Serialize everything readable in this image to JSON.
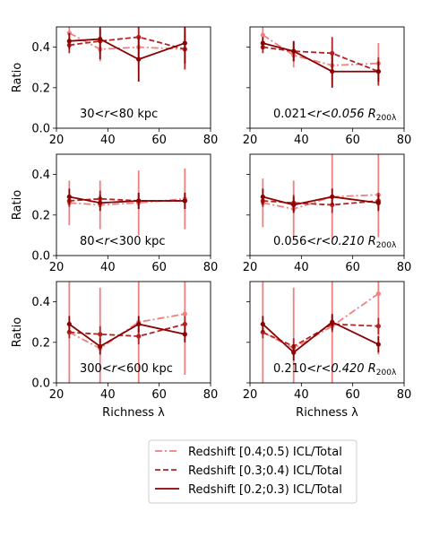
{
  "chart_data": [
    {
      "type": "line",
      "xlabel": "",
      "ylabel": "Ratio",
      "xlim": [
        20,
        80
      ],
      "ylim": [
        0,
        0.5
      ],
      "xticks": [
        "20",
        "40",
        "60",
        "80"
      ],
      "yticks": [
        "0.0",
        "0.2",
        "0.4"
      ],
      "annotation": "30<r<80 kpc",
      "series": [
        {
          "name": "Redshift [0.4;0.5) ICL/Total",
          "color": "#f08080",
          "style": "dashdot",
          "x": [
            25,
            37,
            52,
            70
          ],
          "y": [
            0.47,
            0.39,
            0.4,
            0.39
          ],
          "err": [
            0.04,
            0.06,
            0.11,
            0.07
          ]
        },
        {
          "name": "Redshift [0.3;0.4) ICL/Total",
          "color": "#b22222",
          "style": "dashed",
          "x": [
            25,
            37,
            52,
            70
          ],
          "y": [
            0.41,
            0.43,
            0.45,
            0.39
          ],
          "err": [
            0.04,
            0.06,
            0.12,
            0.1
          ]
        },
        {
          "name": "Redshift [0.2;0.3) ICL/Total",
          "color": "#8b0000",
          "style": "solid",
          "x": [
            25,
            37,
            52,
            70
          ],
          "y": [
            0.43,
            0.44,
            0.34,
            0.42
          ],
          "err": [
            0.04,
            0.1,
            0.11,
            0.1
          ]
        }
      ]
    },
    {
      "type": "line",
      "xlabel": "",
      "ylabel": "",
      "xlim": [
        20,
        80
      ],
      "ylim": [
        0,
        0.5
      ],
      "xticks": [
        "20",
        "40",
        "60",
        "80"
      ],
      "yticks": [],
      "annotation": "0.021<r<0.056 R",
      "annotation_sub": "200λ",
      "series": [
        {
          "name": "Redshift [0.4;0.5) ICL/Total",
          "color": "#f08080",
          "style": "dashdot",
          "x": [
            25,
            37,
            52,
            70
          ],
          "y": [
            0.46,
            0.36,
            0.31,
            0.32
          ],
          "err": [
            0.05,
            0.06,
            0.08,
            0.1
          ]
        },
        {
          "name": "Redshift [0.3;0.4) ICL/Total",
          "color": "#b22222",
          "style": "dashed",
          "x": [
            25,
            37,
            52,
            70
          ],
          "y": [
            0.4,
            0.38,
            0.37,
            0.28
          ],
          "err": [
            0.03,
            0.05,
            0.08,
            0.07
          ]
        },
        {
          "name": "Redshift [0.2;0.3) ICL/Total",
          "color": "#8b0000",
          "style": "solid",
          "x": [
            25,
            37,
            52,
            70
          ],
          "y": [
            0.42,
            0.38,
            0.28,
            0.28
          ],
          "err": [
            0.03,
            0.05,
            0.08,
            0.05
          ]
        }
      ]
    },
    {
      "type": "line",
      "xlabel": "",
      "ylabel": "Ratio",
      "xlim": [
        20,
        80
      ],
      "ylim": [
        0,
        0.5
      ],
      "xticks": [
        "20",
        "40",
        "60",
        "80"
      ],
      "yticks": [
        "0.0",
        "0.2",
        "0.4"
      ],
      "annotation": "80<r<300 kpc",
      "series": [
        {
          "name": "Redshift [0.4;0.5) ICL/Total",
          "color": "#f08080",
          "style": "dashdot",
          "x": [
            25,
            37,
            52,
            70
          ],
          "y": [
            0.26,
            0.25,
            0.26,
            0.28
          ],
          "err": [
            0.11,
            0.12,
            0.16,
            0.15
          ]
        },
        {
          "name": "Redshift [0.3;0.4) ICL/Total",
          "color": "#b22222",
          "style": "dashed",
          "x": [
            25,
            37,
            52,
            70
          ],
          "y": [
            0.27,
            0.28,
            0.27,
            0.27
          ],
          "err": [
            0.03,
            0.04,
            0.04,
            0.04
          ]
        },
        {
          "name": "Redshift [0.2;0.3) ICL/Total",
          "color": "#8b0000",
          "style": "solid",
          "x": [
            25,
            37,
            52,
            70
          ],
          "y": [
            0.29,
            0.26,
            0.27,
            0.27
          ],
          "err": [
            0.04,
            0.04,
            0.04,
            0.04
          ]
        }
      ]
    },
    {
      "type": "line",
      "xlabel": "",
      "ylabel": "",
      "xlim": [
        20,
        80
      ],
      "ylim": [
        0,
        0.5
      ],
      "xticks": [
        "20",
        "40",
        "60",
        "80"
      ],
      "yticks": [],
      "annotation": "0.056<r<0.210 R",
      "annotation_sub": "200λ",
      "series": [
        {
          "name": "Redshift [0.4;0.5) ICL/Total",
          "color": "#f08080",
          "style": "dashdot",
          "x": [
            25,
            37,
            52,
            70
          ],
          "y": [
            0.26,
            0.23,
            0.29,
            0.3
          ],
          "err": [
            0.12,
            0.14,
            0.21,
            0.21
          ]
        },
        {
          "name": "Redshift [0.3;0.4) ICL/Total",
          "color": "#b22222",
          "style": "dashed",
          "x": [
            25,
            37,
            52,
            70
          ],
          "y": [
            0.27,
            0.26,
            0.25,
            0.27
          ],
          "err": [
            0.03,
            0.04,
            0.04,
            0.04
          ]
        },
        {
          "name": "Redshift [0.2;0.3) ICL/Total",
          "color": "#8b0000",
          "style": "solid",
          "x": [
            25,
            37,
            52,
            70
          ],
          "y": [
            0.29,
            0.25,
            0.29,
            0.26
          ],
          "err": [
            0.04,
            0.04,
            0.04,
            0.04
          ]
        }
      ]
    },
    {
      "type": "line",
      "xlabel": "Richness λ",
      "ylabel": "Ratio",
      "xlim": [
        20,
        80
      ],
      "ylim": [
        0,
        0.5
      ],
      "xticks": [
        "20",
        "40",
        "60",
        "80"
      ],
      "yticks": [
        "0.0",
        "0.2",
        "0.4"
      ],
      "annotation": "300<r<600 kpc",
      "series": [
        {
          "name": "Redshift [0.4;0.5) ICL/Total",
          "color": "#f08080",
          "style": "dashdot",
          "x": [
            25,
            37,
            52,
            70
          ],
          "y": [
            0.25,
            0.17,
            0.3,
            0.34
          ],
          "err": [
            0.3,
            0.3,
            0.3,
            0.3
          ]
        },
        {
          "name": "Redshift [0.3;0.4) ICL/Total",
          "color": "#b22222",
          "style": "dashed",
          "x": [
            25,
            37,
            52,
            70
          ],
          "y": [
            0.25,
            0.24,
            0.23,
            0.29
          ],
          "err": [
            0.03,
            0.04,
            0.04,
            0.04
          ]
        },
        {
          "name": "Redshift [0.2;0.3) ICL/Total",
          "color": "#8b0000",
          "style": "solid",
          "x": [
            25,
            37,
            52,
            70
          ],
          "y": [
            0.29,
            0.18,
            0.29,
            0.24
          ],
          "err": [
            0.04,
            0.04,
            0.04,
            0.04
          ]
        }
      ]
    },
    {
      "type": "line",
      "xlabel": "Richness λ",
      "ylabel": "",
      "xlim": [
        20,
        80
      ],
      "ylim": [
        0,
        0.5
      ],
      "xticks": [
        "20",
        "40",
        "60",
        "80"
      ],
      "yticks": [],
      "annotation": "0.210<r<0.420 R",
      "annotation_sub": "200λ",
      "series": [
        {
          "name": "Redshift [0.4;0.5) ICL/Total",
          "color": "#f08080",
          "style": "dashdot",
          "x": [
            25,
            37,
            52,
            70
          ],
          "y": [
            0.25,
            0.17,
            0.28,
            0.44
          ],
          "err": [
            0.3,
            0.3,
            0.3,
            0.3
          ]
        },
        {
          "name": "Redshift [0.3;0.4) ICL/Total",
          "color": "#b22222",
          "style": "dashed",
          "x": [
            25,
            37,
            52,
            70
          ],
          "y": [
            0.25,
            0.18,
            0.29,
            0.28
          ],
          "err": [
            0.03,
            0.04,
            0.04,
            0.04
          ]
        },
        {
          "name": "Redshift [0.2;0.3) ICL/Total",
          "color": "#8b0000",
          "style": "solid",
          "x": [
            25,
            37,
            52,
            70
          ],
          "y": [
            0.29,
            0.15,
            0.3,
            0.19
          ],
          "err": [
            0.04,
            0.04,
            0.04,
            0.04
          ]
        }
      ]
    }
  ],
  "legend": {
    "position": "bottom-center",
    "entries": [
      {
        "label": "Redshift [0.4;0.5) ICL/Total",
        "color": "#f08080",
        "style": "dashdot"
      },
      {
        "label": "Redshift [0.3;0.4) ICL/Total",
        "color": "#b22222",
        "style": "dashed"
      },
      {
        "label": "Redshift [0.2;0.3) ICL/Total",
        "color": "#8b0000",
        "style": "solid"
      }
    ]
  }
}
